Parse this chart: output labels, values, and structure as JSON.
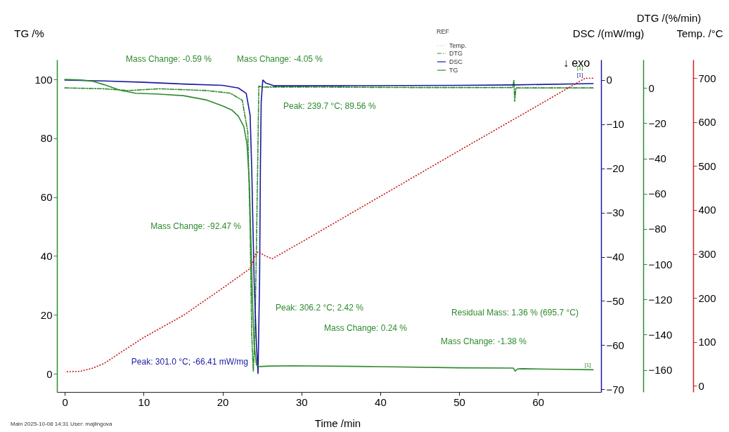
{
  "chart_data": [
    {
      "type": "line",
      "xlabel": "Time /min",
      "ylabel": "TG /%",
      "y2label": "DSC /(mW/mg)",
      "y3label": "DTG /(%/min)",
      "legend": "top",
      "grid": false,
      "xlim": [
        -1,
        68
      ],
      "xticks": [
        0,
        10,
        20,
        30,
        40,
        50,
        60
      ],
      "ylim": [
        -6.2,
        106.7
      ],
      "yticks": [
        0,
        20,
        40,
        60,
        80,
        100
      ],
      "y2lim": [
        -70.6,
        4.6
      ],
      "y2ticks": [
        0,
        -10,
        -20,
        -30,
        -40,
        -50,
        -60,
        -70
      ],
      "y3lim": [
        -172.5,
        16
      ],
      "y3ticks": [
        0,
        -20,
        -40,
        -60,
        -80,
        -100,
        -120,
        -140,
        -160
      ],
      "series": [
        {
          "name": "DTG",
          "color": "#2e8b2e",
          "axis": "y3",
          "line_style": "dashed",
          "x": [
            0,
            5,
            8,
            12,
            18,
            21,
            22.5,
            23.2,
            23.5,
            23.7,
            23.9,
            24.1,
            24.3,
            24.5,
            24.6,
            25,
            30,
            45,
            56.8,
            56.95,
            57.05,
            57.2,
            67
          ],
          "values": [
            0,
            -0.5,
            -1.5,
            -0.5,
            -1.5,
            -3,
            -7,
            -25,
            -80,
            -140,
            -161,
            -140,
            -90,
            -30,
            1,
            0.5,
            0.5,
            0.2,
            0.2,
            4.5,
            -7.6,
            0,
            0
          ]
        },
        {
          "name": "DSC",
          "color": "#1a1aa0",
          "axis": "y2",
          "line_style": "solid",
          "x": [
            0,
            5,
            10,
            15,
            20,
            22,
            23,
            23.5,
            23.7,
            24,
            24.3,
            24.5,
            24.7,
            24.8,
            24.9,
            25.1,
            25.5,
            26.5,
            35,
            50,
            57,
            67
          ],
          "values": [
            0,
            -0.2,
            -0.5,
            -0.9,
            -1.2,
            -1.8,
            -3,
            -8,
            -20,
            -45,
            -60,
            -66.41,
            -45,
            -20,
            -5,
            0,
            -0.7,
            -1.3,
            -1.3,
            -1.2,
            -1.1,
            -0.8
          ]
        },
        {
          "name": "TG",
          "color": "#2e8b2e",
          "line_style": "solid",
          "x": [
            0,
            2,
            3.5,
            5,
            7,
            9,
            12,
            15,
            18,
            20,
            21.2,
            22,
            22.7,
            23.1,
            23.4,
            23.6,
            23.8,
            24,
            24.3,
            24.7,
            26,
            29,
            40,
            50,
            56.9,
            57.1,
            57.4,
            58,
            63,
            67
          ],
          "values": [
            100,
            99.8,
            99.4,
            98.2,
            96.3,
            95.3,
            95,
            94.5,
            93,
            91,
            89.56,
            87.5,
            84,
            78,
            65,
            45,
            25,
            10,
            3,
            2.42,
            2.6,
            2.7,
            2.4,
            2,
            1.9,
            0.9,
            1.6,
            1.7,
            1.5,
            1.36
          ]
        }
      ],
      "annotations": [
        "Mass Change: -0.59 %",
        "Mass Change: -4.05 %",
        "Peak: 239.7 °C; 89.56 %",
        "Mass Change: -92.47 %",
        "Peak: 306.2 °C; 2.42 %",
        "Mass Change: 0.24 %",
        "Residual Mass: 1.36 % (695.7 °C)",
        "Mass Change: -1.38 %",
        "Peak: 301.0 °C; -66.41 mW/mg",
        "↓ exo",
        "[1]",
        "[1]",
        "[1]",
        "Main   2025-10-08 14:31   User: majlingova"
      ]
    },
    {
      "type": "line",
      "ylabel": "Temp. /°C",
      "legend_title": "REF",
      "legend": "top",
      "tick_labels": "y",
      "xlim": [
        -1,
        68
      ],
      "ylim": [
        -14,
        742
      ],
      "yticks": [
        0,
        100,
        200,
        300,
        400,
        500,
        600,
        700
      ],
      "series": [
        {
          "name": "Temp.",
          "color": "#cc2222",
          "line_style": "dotted",
          "x": [
            0.3,
            2,
            3.5,
            5,
            7,
            10,
            15,
            20,
            23.5,
            24.2,
            24.5,
            25.5,
            26.3,
            30,
            40,
            50,
            60,
            66,
            67
          ],
          "values": [
            32,
            33,
            40,
            51,
            75,
            110,
            160,
            222,
            267,
            300,
            305,
            295,
            289,
            327,
            431,
            535,
            638,
            700,
            700
          ]
        }
      ]
    }
  ]
}
